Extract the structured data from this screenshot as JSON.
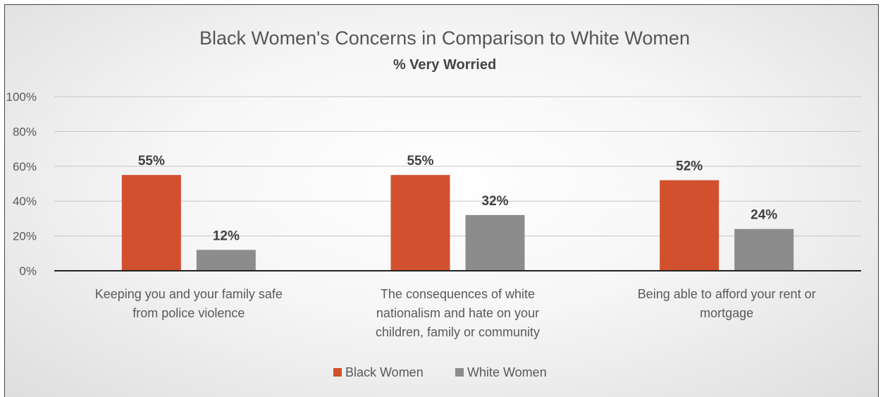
{
  "chart_data": {
    "type": "bar",
    "title": "Black Women's Concerns in Comparison to White Women",
    "subtitle": "% Very Worried",
    "categories": [
      [
        "Keeping you and your family safe",
        "from police violence"
      ],
      [
        "The consequences of white",
        "nationalism and hate on your",
        "children, family or community"
      ],
      [
        "Being able to afford your rent or",
        "mortgage"
      ]
    ],
    "series": [
      {
        "name": "Black Women",
        "values": [
          55,
          55,
          52
        ],
        "labels": [
          "55%",
          "55%",
          "52%"
        ],
        "color": "#d2502e"
      },
      {
        "name": "White Women",
        "values": [
          12,
          32,
          24
        ],
        "labels": [
          "12%",
          "32%",
          "24%"
        ],
        "color": "#8c8c8c"
      }
    ],
    "y_ticks": [
      "0%",
      "20%",
      "40%",
      "60%",
      "80%",
      "100%"
    ],
    "ylim": [
      0,
      100
    ],
    "grid": true,
    "legend_position": "bottom"
  }
}
